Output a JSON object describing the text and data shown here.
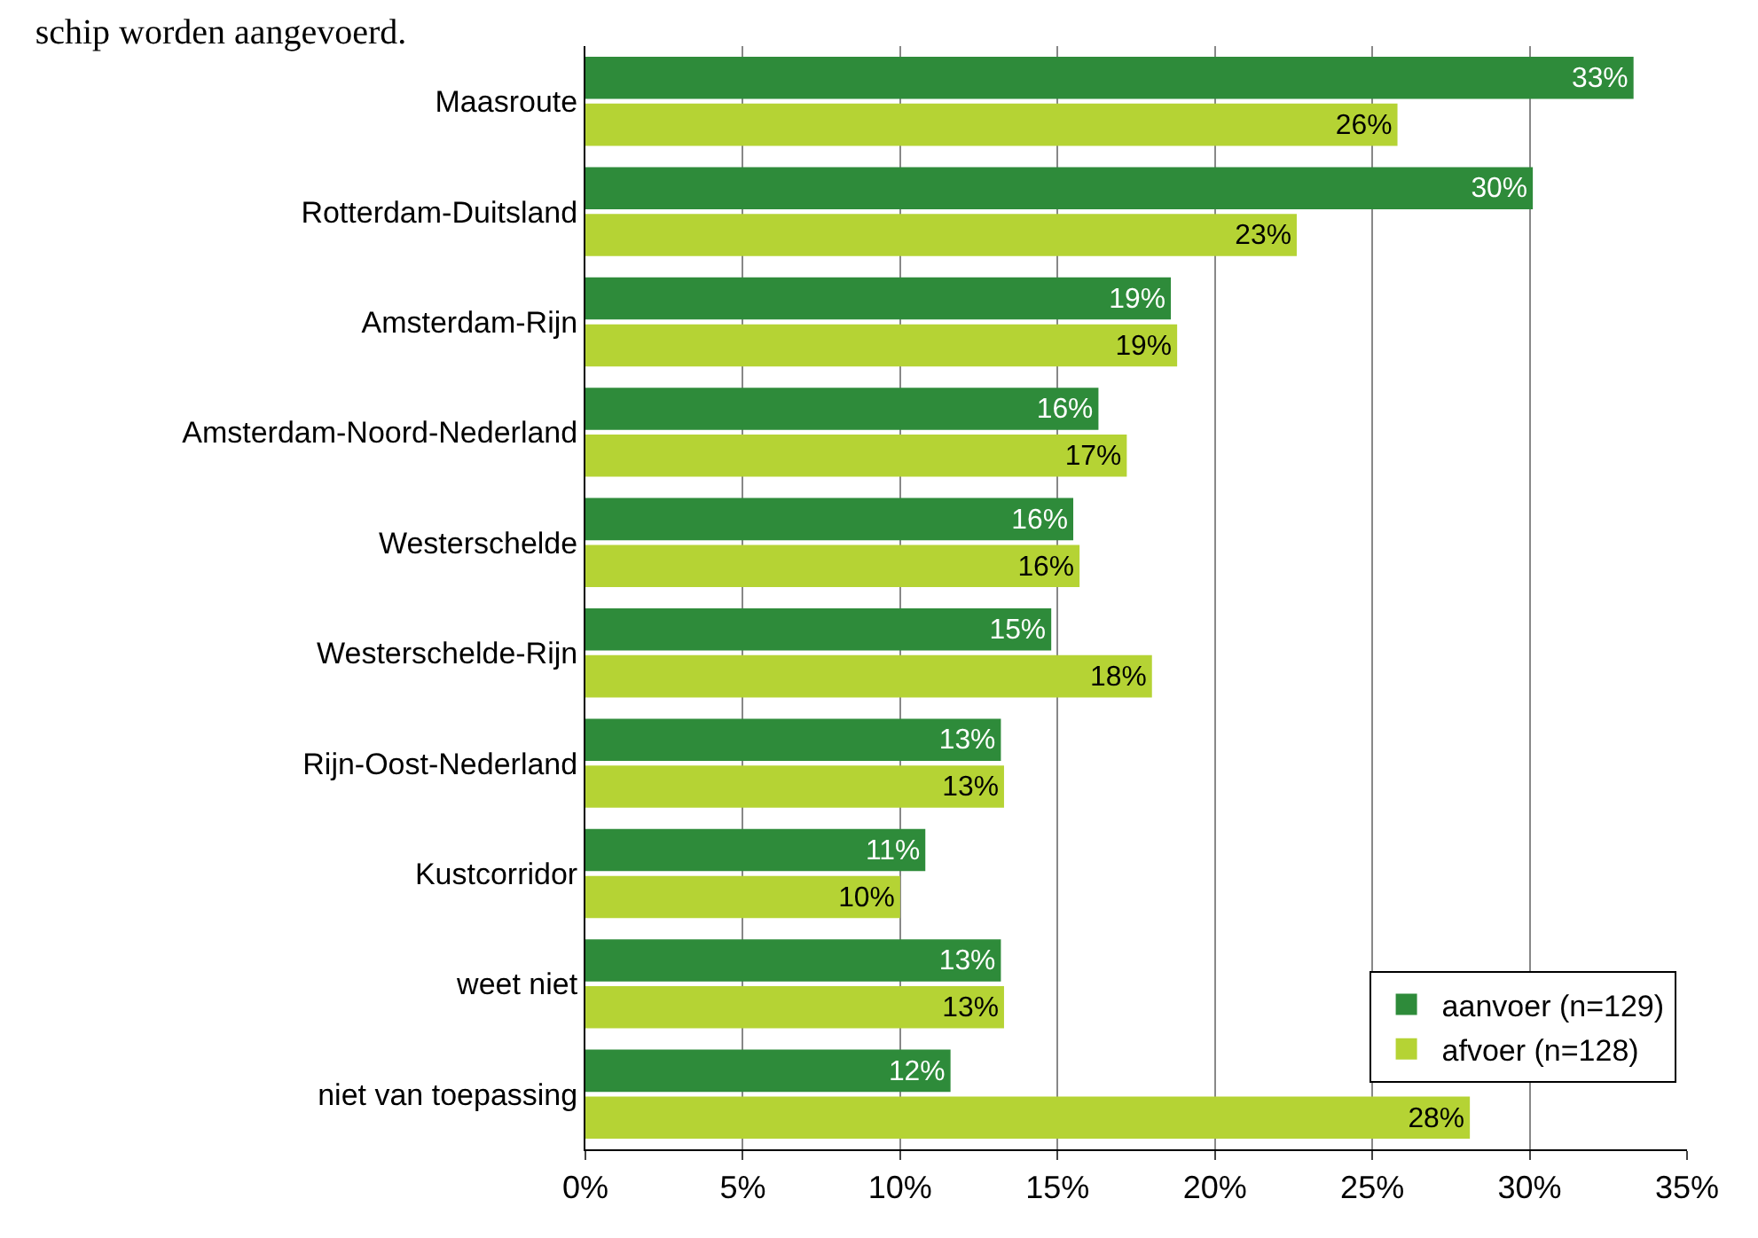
{
  "chart_data": {
    "type": "bar",
    "orientation": "horizontal",
    "title": "schip worden aangevoerd.",
    "categories": [
      "Maasroute",
      "Rotterdam-Duitsland",
      "Amsterdam-Rijn",
      "Amsterdam-Noord-Nederland",
      "Westerschelde",
      "Westerschelde-Rijn",
      "Rijn-Oost-Nederland",
      "Kustcorridor",
      "weet niet",
      "niet van toepassing"
    ],
    "series": [
      {
        "name": "aanvoer (n=129)",
        "color": "#2e8b3a",
        "values": [
          33.3,
          30.1,
          18.6,
          16.3,
          15.5,
          14.8,
          13.2,
          10.8,
          13.2,
          11.6
        ],
        "value_labels": [
          "33%",
          "30%",
          "19%",
          "16%",
          "16%",
          "15%",
          "13%",
          "11%",
          "13%",
          "12%"
        ]
      },
      {
        "name": "afvoer (n=128)",
        "color": "#b5d334",
        "values": [
          25.8,
          22.6,
          18.8,
          17.2,
          15.7,
          18.0,
          13.3,
          10.0,
          13.3,
          28.1
        ],
        "value_labels": [
          "26%",
          "23%",
          "19%",
          "17%",
          "16%",
          "18%",
          "13%",
          "10%",
          "13%",
          "28%"
        ]
      }
    ],
    "xlim": [
      0,
      35
    ],
    "xticks": [
      {
        "value": 0,
        "label": "0%"
      },
      {
        "value": 5,
        "label": "5%"
      },
      {
        "value": 10,
        "label": "10%"
      },
      {
        "value": 15,
        "label": "15%"
      },
      {
        "value": 20,
        "label": "20%"
      },
      {
        "value": 25,
        "label": "25%"
      },
      {
        "value": 30,
        "label": "30%"
      },
      {
        "value": 35,
        "label": "35%"
      }
    ],
    "grid": "x",
    "legend": "bottom right"
  }
}
